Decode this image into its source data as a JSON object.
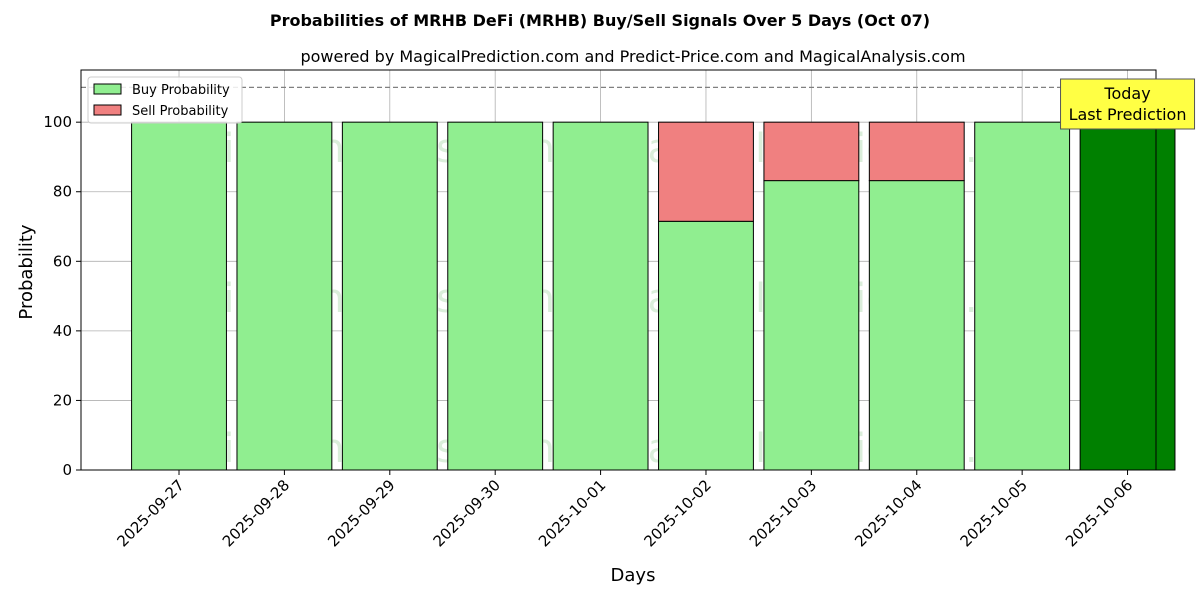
{
  "chart_data": {
    "type": "bar",
    "title": "Probabilities of MRHB DeFi (MRHB) Buy/Sell Signals Over 5 Days (Oct 07)",
    "subtitle": "powered by MagicalPrediction.com and Predict-Price.com and MagicalAnalysis.com",
    "xlabel": "Days",
    "ylabel": "Probability",
    "ylim": [
      0,
      115
    ],
    "yticks": [
      0,
      20,
      40,
      60,
      80,
      100
    ],
    "reference_line": 110,
    "grid": true,
    "stacked": true,
    "legend_position": "top-left",
    "categories": [
      "2025-09-27",
      "2025-09-28",
      "2025-09-29",
      "2025-09-30",
      "2025-10-01",
      "2025-10-02",
      "2025-10-03",
      "2025-10-04",
      "2025-10-05",
      "2025-10-06"
    ],
    "series": [
      {
        "name": "Buy Probability",
        "values": [
          100,
          100,
          100,
          100,
          100,
          71.5,
          83.2,
          83.2,
          100,
          100
        ],
        "color": "#90ee90"
      },
      {
        "name": "Sell Probability",
        "values": [
          0,
          0,
          0,
          0,
          0,
          28.5,
          16.8,
          16.8,
          0,
          0
        ],
        "color": "#f08080"
      }
    ],
    "highlight_color": "#008000",
    "highlight_category": "2025-10-06",
    "annotation": {
      "lines": [
        "Today",
        "Last Prediction"
      ],
      "background": "#ffff44"
    },
    "watermarks": [
      "MagicalAnalysis.com",
      "MagicalPrediction.com"
    ]
  }
}
